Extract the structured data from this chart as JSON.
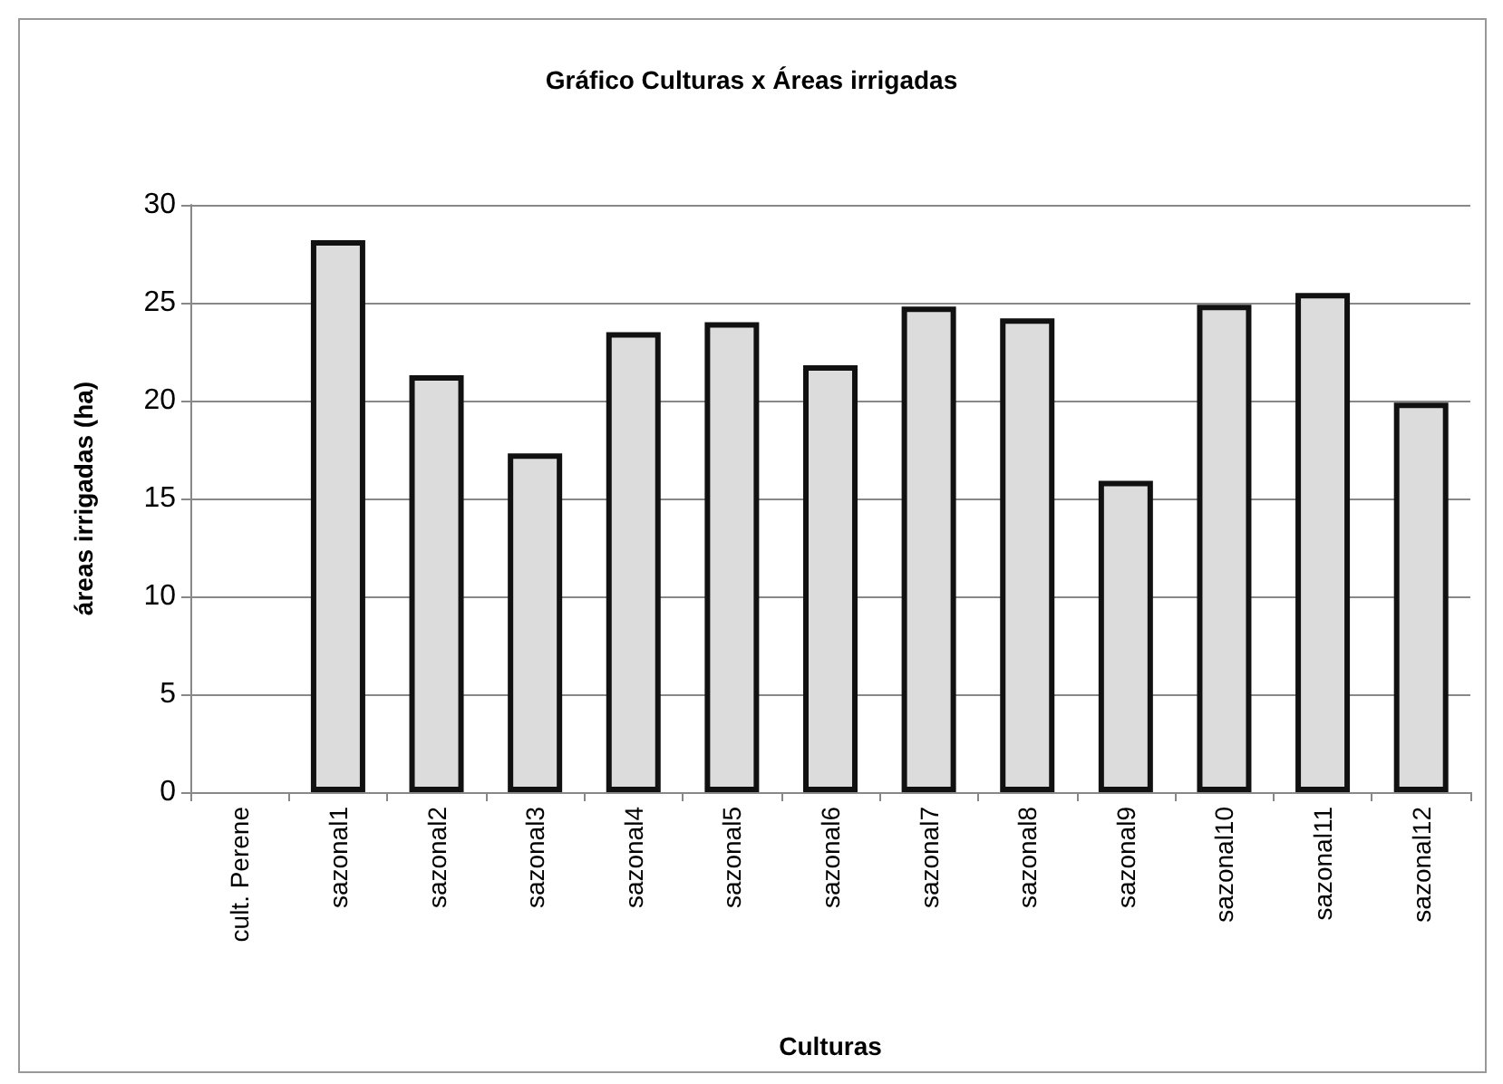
{
  "chart_data": {
    "type": "bar",
    "title": "Gráfico Culturas x Áreas irrigadas",
    "xlabel": "Culturas",
    "ylabel": "áreas irrigadas (ha)",
    "categories": [
      "cult. Perene",
      "sazonal1",
      "sazonal2",
      "sazonal3",
      "sazonal4",
      "sazonal5",
      "sazonal6",
      "sazonal7",
      "sazonal8",
      "sazonal9",
      "sazonal10",
      "sazonal11",
      "sazonal12"
    ],
    "values": [
      null,
      28.2,
      21.3,
      17.3,
      23.5,
      24.0,
      21.8,
      24.8,
      24.2,
      15.9,
      24.9,
      25.5,
      19.9
    ],
    "color": "#dcdcdc",
    "ylim": [
      0,
      30
    ],
    "yticks": [
      0,
      5,
      10,
      15,
      20,
      25,
      30
    ],
    "grid": "y"
  }
}
